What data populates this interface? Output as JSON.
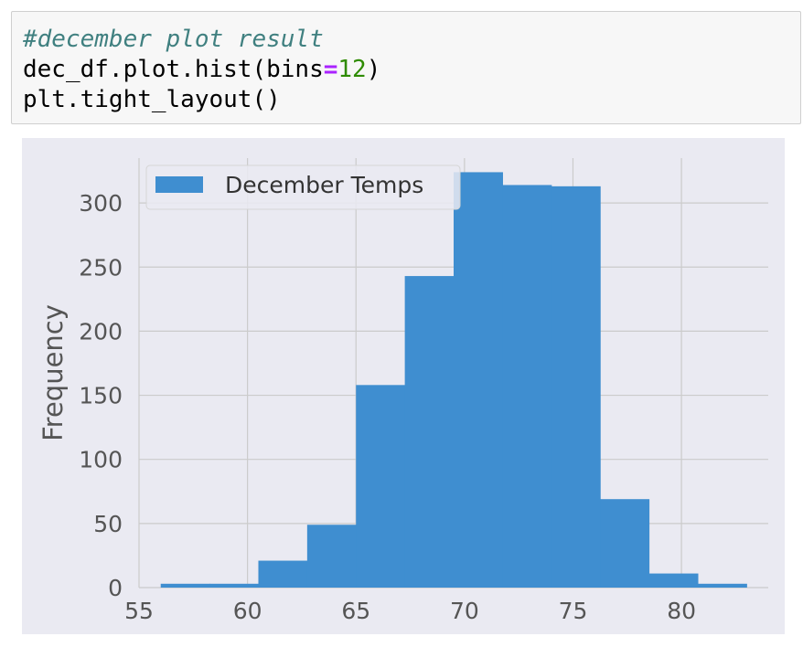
{
  "code_cell": {
    "lines": [
      {
        "segments": [
          {
            "text": "#december plot result",
            "class": "tok-comment"
          }
        ]
      },
      {
        "segments": [
          {
            "text": "dec_df.plot.hist(bins",
            "class": ""
          },
          {
            "text": "=",
            "class": "tok-op"
          },
          {
            "text": "12",
            "class": "tok-num"
          },
          {
            "text": ")",
            "class": ""
          }
        ]
      },
      {
        "segments": [
          {
            "text": "plt.tight_layout()",
            "class": ""
          }
        ]
      }
    ]
  },
  "chart_data": {
    "type": "bar",
    "histogram": true,
    "title": "",
    "xlabel": "",
    "ylabel": "Frequency",
    "xlim": [
      55,
      84
    ],
    "ylim": [
      0,
      335
    ],
    "grid": true,
    "legend_position": "top-left",
    "xticks": [
      55,
      60,
      65,
      70,
      75,
      80
    ],
    "yticks": [
      0,
      50,
      100,
      150,
      200,
      250,
      300
    ],
    "bin_edges": [
      56.0,
      58.25,
      60.5,
      62.75,
      65.0,
      67.25,
      69.5,
      71.75,
      74.0,
      76.25,
      78.5,
      80.75,
      83.0
    ],
    "series": [
      {
        "name": "December Temps",
        "color": "#3f8ed0",
        "values": [
          3,
          3,
          21,
          49,
          158,
          243,
          324,
          314,
          313,
          69,
          11,
          3
        ]
      }
    ],
    "background_color": "#eaeaf2",
    "grid_color": "#cbcbcb"
  }
}
